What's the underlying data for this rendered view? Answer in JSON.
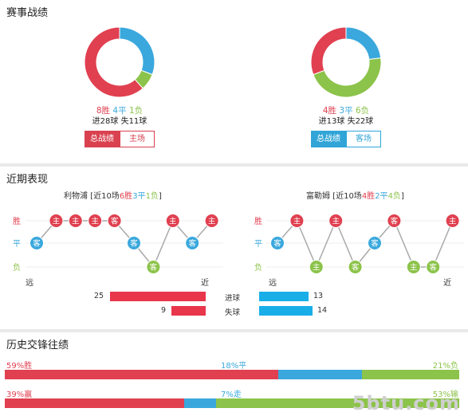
{
  "colors": {
    "win": "#e04050",
    "draw": "#3aa8dd",
    "loss": "#8cc34a",
    "home_red": "#d9414f",
    "away_blue": "#31a5d8"
  },
  "record": {
    "title": "赛事战绩",
    "left": {
      "win": "8胜",
      "draw": "4平",
      "loss": "1负",
      "goals": "进28球 失11球",
      "tab_total": "总战绩",
      "tab_venue": "主场",
      "counts": [
        8,
        4,
        1
      ]
    },
    "right": {
      "win": "4胜",
      "draw": "3平",
      "loss": "6负",
      "goals": "进13球 失22球",
      "tab_total": "总战绩",
      "tab_venue": "客场",
      "counts": [
        4,
        3,
        6
      ]
    }
  },
  "form": {
    "title": "近期表现",
    "row_labels": {
      "win": "胜",
      "draw": "平",
      "loss": "负"
    },
    "far": "远",
    "near": "近",
    "left": {
      "team": "利物浦",
      "prefix": " [近10场",
      "w": "6胜",
      "d": "3平",
      "l": "1负",
      "suffix": "]",
      "games": [
        {
          "v": "客",
          "r": "d"
        },
        {
          "v": "主",
          "r": "w"
        },
        {
          "v": "主",
          "r": "w"
        },
        {
          "v": "主",
          "r": "w"
        },
        {
          "v": "客",
          "r": "w"
        },
        {
          "v": "客",
          "r": "d"
        },
        {
          "v": "客",
          "r": "l"
        },
        {
          "v": "主",
          "r": "w"
        },
        {
          "v": "客",
          "r": "d"
        },
        {
          "v": "主",
          "r": "w"
        }
      ]
    },
    "right": {
      "team": "富勒姆",
      "prefix": " [近10场",
      "w": "4胜",
      "d": "2平",
      "l": "4负",
      "suffix": "]",
      "games": [
        {
          "v": "客",
          "r": "d"
        },
        {
          "v": "主",
          "r": "w"
        },
        {
          "v": "主",
          "r": "l"
        },
        {
          "v": "主",
          "r": "w"
        },
        {
          "v": "客",
          "r": "l"
        },
        {
          "v": "客",
          "r": "d"
        },
        {
          "v": "客",
          "r": "w"
        },
        {
          "v": "主",
          "r": "l"
        },
        {
          "v": "客",
          "r": "l"
        },
        {
          "v": "主",
          "r": "w"
        }
      ]
    },
    "goals_for_label": "进球",
    "goals_against_label": "失球",
    "left_for": "25",
    "left_against": "9",
    "right_for": "13",
    "right_against": "14",
    "left_for_val": 25,
    "left_against_val": 9,
    "right_for_val": 13,
    "right_against_val": 14
  },
  "history": {
    "title": "历史交锋往绩",
    "row1": {
      "left": "59%胜",
      "mid": "18%平",
      "right": "21%负",
      "values": [
        59,
        18,
        21
      ]
    },
    "row2": {
      "left": "39%赢",
      "mid": "7%走",
      "right": "53%输",
      "values": [
        39,
        7,
        53
      ]
    }
  },
  "watermark": "5btu.com"
}
